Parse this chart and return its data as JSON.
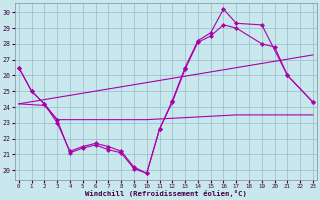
{
  "xlabel": "Windchill (Refroidissement éolien,°C)",
  "background_color": "#c8e8ee",
  "grid_color": "#99bbc8",
  "line_color": "#aa00aa",
  "xlim_min": -0.3,
  "xlim_max": 23.3,
  "ylim_min": 19.4,
  "ylim_max": 30.6,
  "yticks": [
    20,
    21,
    22,
    23,
    24,
    25,
    26,
    27,
    28,
    29,
    30
  ],
  "xticks": [
    0,
    1,
    2,
    3,
    4,
    5,
    6,
    7,
    8,
    9,
    10,
    11,
    12,
    13,
    14,
    15,
    16,
    17,
    18,
    19,
    20,
    21,
    22,
    23
  ],
  "line1_x": [
    0,
    1,
    2,
    3,
    4,
    5,
    6,
    7,
    8,
    9,
    10,
    11,
    12,
    13,
    14,
    15,
    16,
    17,
    19,
    21,
    23
  ],
  "line1_y": [
    26.5,
    25.0,
    24.2,
    23.0,
    21.2,
    21.5,
    21.7,
    21.5,
    21.2,
    20.2,
    19.8,
    22.6,
    24.4,
    26.5,
    28.2,
    28.7,
    30.2,
    29.3,
    29.2,
    26.0,
    24.3
  ],
  "line2_x": [
    0,
    1,
    2,
    3,
    4,
    5,
    6,
    7,
    8,
    9,
    10,
    11,
    12,
    13,
    14,
    15,
    16,
    17,
    19,
    20,
    21,
    23
  ],
  "line2_y": [
    26.5,
    25.0,
    24.2,
    23.2,
    21.1,
    21.4,
    21.6,
    21.3,
    21.1,
    20.1,
    19.8,
    22.6,
    24.3,
    26.4,
    28.1,
    28.5,
    29.2,
    29.0,
    28.0,
    27.8,
    26.0,
    24.3
  ],
  "trend1_x": [
    0,
    23
  ],
  "trend1_y": [
    24.2,
    27.3
  ],
  "trend2_x": [
    0,
    2,
    3,
    10,
    17,
    19,
    23
  ],
  "trend2_y": [
    24.2,
    24.1,
    23.2,
    23.2,
    23.5,
    23.5,
    23.5
  ]
}
